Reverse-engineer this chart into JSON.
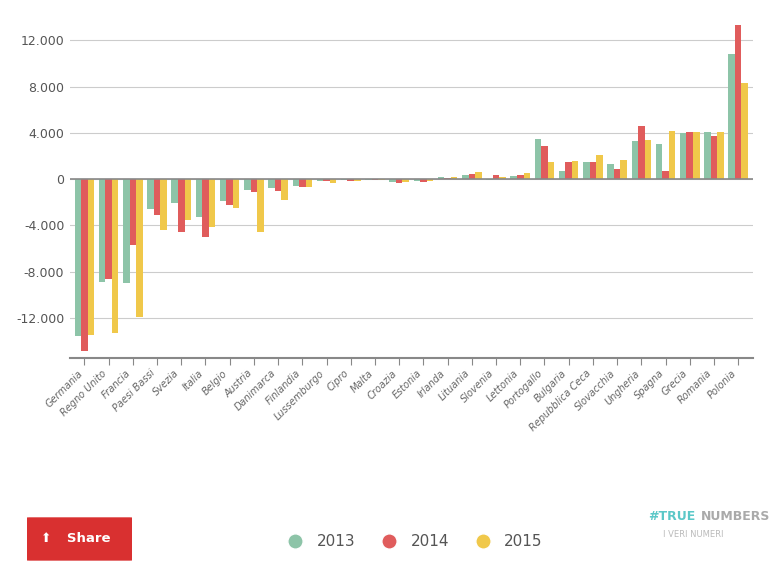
{
  "categories": [
    "Germania",
    "Regno Unito",
    "Francia",
    "Paesi Bassi",
    "Svezia",
    "Italia",
    "Belgio",
    "Austria",
    "Danimarca",
    "Finlandia",
    "Lussemburgo",
    "Cipro",
    "Malta",
    "Croazia",
    "Estonia",
    "Irlanda",
    "Lituania",
    "Slovenia",
    "Lettonia",
    "Portogallo",
    "Bulgaria",
    "Repubblica Ceca",
    "Slovacchia",
    "Ungheria",
    "Spagna",
    "Grecia",
    "Romania",
    "Polonia"
  ],
  "values_2013": [
    -13600,
    -8900,
    -9000,
    -2600,
    -2100,
    -3300,
    -1900,
    -900,
    -800,
    -600,
    -200,
    -80,
    -40,
    -280,
    -150,
    150,
    350,
    -50,
    250,
    3500,
    700,
    1500,
    1300,
    3300,
    3000,
    4000,
    4100,
    10800
  ],
  "values_2014": [
    -14900,
    -8600,
    -5700,
    -3100,
    -4600,
    -5000,
    -2200,
    -1100,
    -1000,
    -700,
    -130,
    -130,
    -50,
    -360,
    -260,
    100,
    480,
    350,
    380,
    2900,
    1500,
    1450,
    900,
    4600,
    750,
    4100,
    3700,
    13300
  ],
  "values_2015": [
    -13500,
    -13300,
    -11900,
    -4400,
    -3500,
    -4100,
    -2500,
    -4600,
    -1800,
    -700,
    -300,
    -170,
    -70,
    -270,
    -170,
    200,
    580,
    180,
    550,
    1500,
    1550,
    2050,
    1700,
    3400,
    4200,
    4100,
    4100,
    8300
  ],
  "color_2013": "#8DC4A8",
  "color_2014": "#E05C5C",
  "color_2015": "#F0C84A",
  "bg_color": "#FFFFFF",
  "grid_color": "#CCCCCC",
  "yticks": [
    -12000,
    -8000,
    -4000,
    0,
    4000,
    8000,
    12000
  ],
  "legend_labels": [
    "2013",
    "2014",
    "2015"
  ],
  "bar_width": 0.27,
  "figwidth": 7.76,
  "figheight": 5.78,
  "dpi": 100
}
